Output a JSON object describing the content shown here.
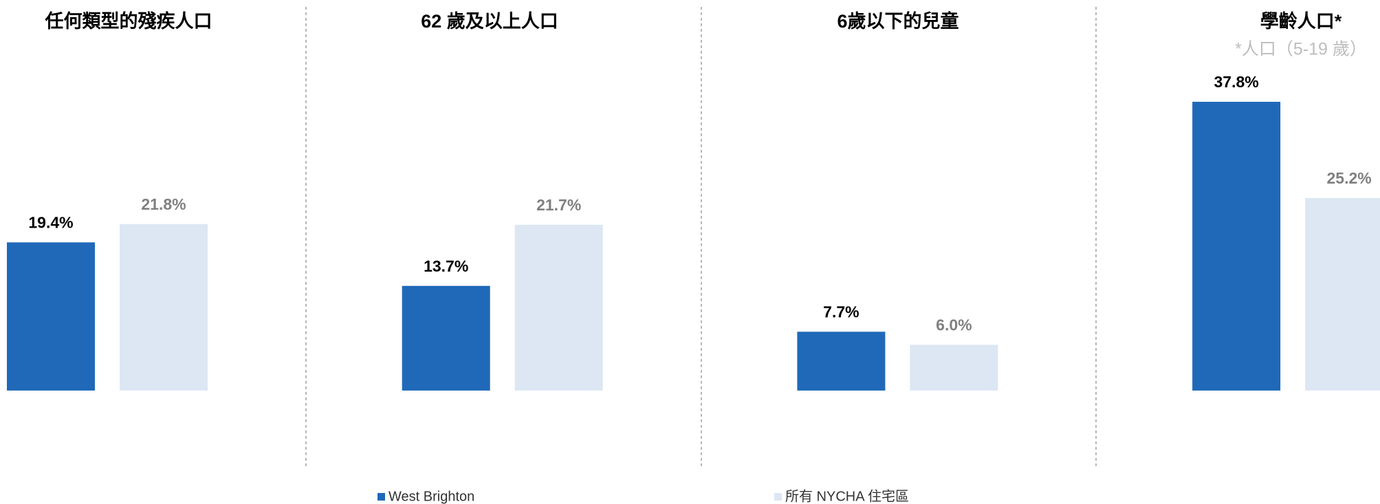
{
  "chart_data": [
    {
      "type": "bar",
      "title": "任何類型的殘疾人口",
      "values": [
        19.4,
        21.8
      ],
      "value_labels": [
        "19.4%",
        "21.8%"
      ]
    },
    {
      "type": "bar",
      "title": "62 歲及以上人口",
      "values": [
        13.7,
        21.7
      ],
      "value_labels": [
        "13.7%",
        "21.7%"
      ]
    },
    {
      "type": "bar",
      "title": "6歲以下的兒童",
      "values": [
        7.7,
        6.0
      ],
      "value_labels": [
        "7.7%",
        "6.0%"
      ]
    },
    {
      "type": "bar",
      "title": "學齡人口*",
      "subtitle": "*人口（5-19 歲）",
      "values": [
        37.8,
        25.2
      ],
      "value_labels": [
        "37.8%",
        "25.2%"
      ]
    }
  ],
  "legend": [
    {
      "name": "West Brighton",
      "color": "#2069b9",
      "label_color": "#000000"
    },
    {
      "name": "所有 NYCHA 住宅區",
      "color": "#dce7f3",
      "label_color": "#808080"
    }
  ]
}
